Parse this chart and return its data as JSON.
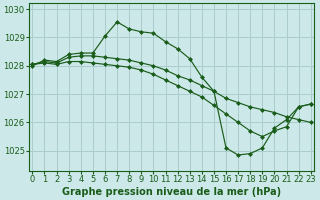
{
  "background_color": "#cce8e8",
  "grid_color": "#aacccc",
  "line_color": "#1a5c1a",
  "marker_color": "#1a5c1a",
  "title": "Graphe pression niveau de la mer (hPa)",
  "ylim": [
    1024.3,
    1030.2
  ],
  "yticks": [
    1025,
    1026,
    1027,
    1028,
    1029,
    1030
  ],
  "xlim": [
    -0.3,
    23.3
  ],
  "xticks": [
    0,
    1,
    2,
    3,
    4,
    5,
    6,
    7,
    8,
    9,
    10,
    11,
    12,
    13,
    14,
    15,
    16,
    17,
    18,
    19,
    20,
    21,
    22,
    23
  ],
  "series1_x": [
    0,
    1,
    2,
    3,
    4,
    5,
    6,
    7,
    8,
    9,
    10,
    11,
    12,
    13,
    14,
    15,
    16,
    17,
    18,
    19,
    20,
    21,
    22,
    23
  ],
  "series1_y": [
    1028.0,
    1028.2,
    1028.15,
    1028.4,
    1028.45,
    1028.45,
    1029.05,
    1029.55,
    1029.3,
    1029.2,
    1029.15,
    1028.85,
    1028.6,
    1028.25,
    1027.6,
    1027.1,
    1025.1,
    1024.85,
    1024.9,
    1025.1,
    1025.8,
    1026.1,
    1026.55,
    1026.65
  ],
  "series2_x": [
    0,
    1,
    2,
    3,
    4,
    5,
    6,
    7,
    8,
    9,
    10,
    11,
    12,
    13,
    14,
    15,
    16,
    17,
    18,
    19,
    20,
    21,
    22,
    23
  ],
  "series2_y": [
    1028.05,
    1028.15,
    1028.1,
    1028.3,
    1028.35,
    1028.35,
    1028.3,
    1028.25,
    1028.2,
    1028.1,
    1028.0,
    1027.85,
    1027.65,
    1027.5,
    1027.3,
    1027.1,
    1026.85,
    1026.7,
    1026.55,
    1026.45,
    1026.35,
    1026.2,
    1026.1,
    1026.0
  ],
  "series3_x": [
    0,
    1,
    2,
    3,
    4,
    5,
    6,
    7,
    8,
    9,
    10,
    11,
    12,
    13,
    14,
    15,
    16,
    17,
    18,
    19,
    20,
    21,
    22,
    23
  ],
  "series3_y": [
    1028.05,
    1028.1,
    1028.05,
    1028.15,
    1028.15,
    1028.1,
    1028.05,
    1028.0,
    1027.95,
    1027.85,
    1027.7,
    1027.5,
    1027.3,
    1027.1,
    1026.9,
    1026.6,
    1026.3,
    1026.0,
    1025.7,
    1025.5,
    1025.7,
    1025.85,
    1026.55,
    1026.65
  ],
  "tick_fontsize": 6.0,
  "title_fontsize": 7.0
}
